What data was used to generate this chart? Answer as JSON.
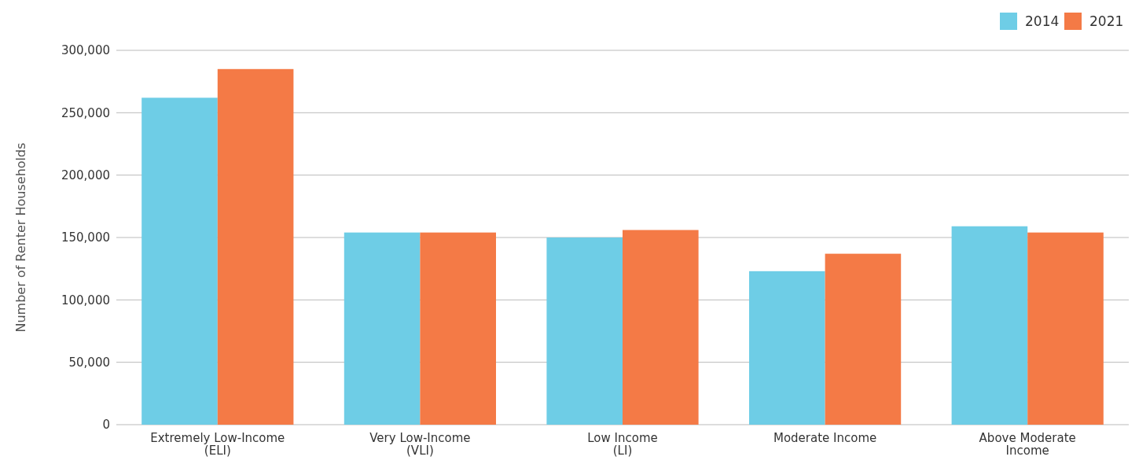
{
  "chart_data": {
    "type": "bar",
    "ylabel": "Number of Renter Households",
    "categories": [
      "Extremely Low-Income\n(ELI)",
      "Very Low-Income\n(VLI)",
      "Low Income\n(LI)",
      "Moderate Income",
      "Above Moderate\nIncome"
    ],
    "series": [
      {
        "name": "2014",
        "color": "#6ecde6",
        "values": [
          262000,
          154000,
          150000,
          123000,
          159000
        ]
      },
      {
        "name": "2021",
        "color": "#f47a46",
        "values": [
          285000,
          154000,
          156000,
          137000,
          154000
        ]
      }
    ],
    "ylim": [
      0,
      300000
    ],
    "yticks": [
      {
        "value": 0,
        "label": "0"
      },
      {
        "value": 50000,
        "label": "50,000"
      },
      {
        "value": 100000,
        "label": "100,000"
      },
      {
        "value": 150000,
        "label": "150,000"
      },
      {
        "value": 200000,
        "label": "200,000"
      },
      {
        "value": 250000,
        "label": "250,000"
      },
      {
        "value": 300000,
        "label": "300,000"
      }
    ],
    "grid": "y",
    "legend": "top right"
  }
}
